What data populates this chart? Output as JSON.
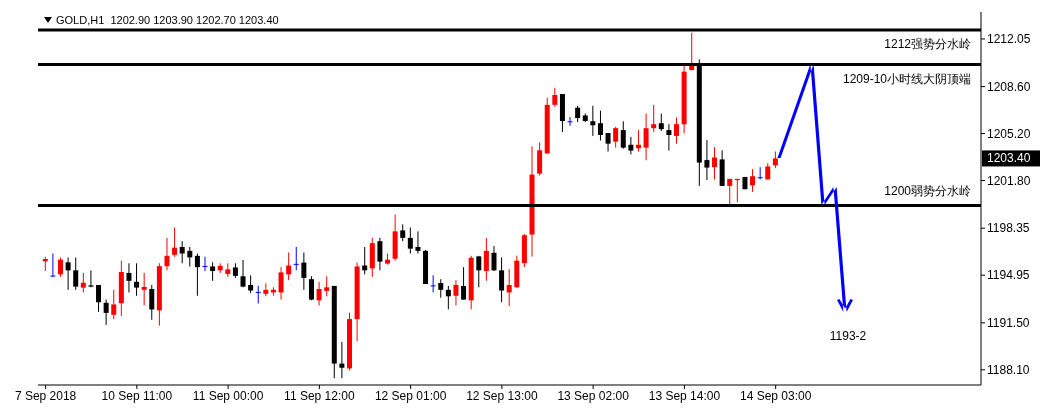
{
  "chart_data": {
    "type": "candlestick",
    "title": "GOLD,H1  1202.90 1203.90 1202.70 1203.40",
    "categories": [
      "7 Sep 2018",
      null,
      null,
      null,
      null,
      null,
      null,
      null,
      null,
      null,
      null,
      null,
      "10 Sep 11:00",
      null,
      null,
      null,
      null,
      null,
      null,
      null,
      null,
      null,
      null,
      null,
      "11 Sep 00:00",
      null,
      null,
      null,
      null,
      null,
      null,
      null,
      null,
      null,
      null,
      null,
      "11 Sep 12:00",
      null,
      null,
      null,
      null,
      null,
      null,
      null,
      null,
      null,
      null,
      null,
      "12 Sep 01:00",
      null,
      null,
      null,
      null,
      null,
      null,
      null,
      null,
      null,
      null,
      null,
      "12 Sep 13:00",
      null,
      null,
      null,
      null,
      null,
      null,
      null,
      null,
      null,
      null,
      null,
      "13 Sep 02:00",
      null,
      null,
      null,
      null,
      null,
      null,
      null,
      null,
      null,
      null,
      null,
      "13 Sep 14:00",
      null,
      null,
      null,
      null,
      null,
      null,
      null,
      null,
      null,
      null,
      null,
      "14 Sep 03:00",
      null,
      null,
      null,
      null,
      null,
      null,
      null,
      null,
      null,
      null,
      null,
      null,
      null,
      null,
      null,
      null,
      null,
      null,
      null,
      null,
      null,
      null,
      null,
      null,
      null,
      null
    ],
    "ohlc": [
      [
        1195.95,
        1196.28,
        1195.25,
        1196.12
      ],
      [
        1194.92,
        1196.52,
        1194.83,
        1194.92
      ],
      [
        1195.01,
        1196.23,
        1194.83,
        1196.07
      ],
      [
        1195.88,
        1196.23,
        1193.89,
        1195.3
      ],
      [
        1195.3,
        1196.23,
        1193.89,
        1194.12
      ],
      [
        1194.05,
        1195.11,
        1193.7,
        1194.4
      ],
      [
        1194.21,
        1195.3,
        1194.07,
        1194.12
      ],
      [
        1194.24,
        1194.24,
        1192.29,
        1192.99
      ],
      [
        1192.95,
        1193.18,
        1191.35,
        1192.22
      ],
      [
        1192.08,
        1193.89,
        1191.77,
        1192.83
      ],
      [
        1192.92,
        1196.0,
        1192.0,
        1195.18
      ],
      [
        1195.11,
        1195.81,
        1193.7,
        1194.54
      ],
      [
        1194.47,
        1195.81,
        1193.46,
        1194.05
      ],
      [
        1193.89,
        1195.11,
        1192.76,
        1194.1
      ],
      [
        1193.95,
        1194.24,
        1191.72,
        1192.47
      ],
      [
        1192.4,
        1195.81,
        1191.3,
        1195.6
      ],
      [
        1195.6,
        1197.65,
        1195.3,
        1196.35
      ],
      [
        1196.42,
        1198.4,
        1196.28,
        1196.94
      ],
      [
        1196.99,
        1197.41,
        1195.81,
        1196.52
      ],
      [
        1196.71,
        1196.99,
        1195.58,
        1196.24
      ],
      [
        1196.35,
        1196.52,
        1193.46,
        1195.53
      ],
      [
        1195.62,
        1196.28,
        1195.25,
        1195.62
      ],
      [
        1195.58,
        1195.88,
        1194.54,
        1195.25
      ],
      [
        1195.3,
        1195.81,
        1195.11,
        1195.62
      ],
      [
        1195.04,
        1195.81,
        1194.83,
        1195.37
      ],
      [
        1195.51,
        1195.81,
        1194.75,
        1194.9
      ],
      [
        1194.87,
        1196.05,
        1194.07,
        1194.12
      ],
      [
        1194.24,
        1194.94,
        1193.65,
        1193.84
      ],
      [
        1193.74,
        1194.17,
        1192.9,
        1193.74
      ],
      [
        1193.6,
        1194.35,
        1193.42,
        1193.89
      ],
      [
        1193.7,
        1194.07,
        1193.46,
        1193.89
      ],
      [
        1193.7,
        1195.53,
        1193.18,
        1195.15
      ],
      [
        1195.01,
        1196.59,
        1194.59,
        1195.65
      ],
      [
        1195.77,
        1196.99,
        1195.3,
        1195.77
      ],
      [
        1195.86,
        1196.59,
        1193.89,
        1194.75
      ],
      [
        1194.66,
        1194.87,
        1193.13,
        1193.18
      ],
      [
        1193.13,
        1194.47,
        1192.76,
        1193.95
      ],
      [
        1193.81,
        1194.87,
        1193.42,
        1194.07
      ],
      [
        1194.17,
        1194.17,
        1187.49,
        1188.55
      ],
      [
        1188.55,
        1190.12,
        1187.49,
        1188.25
      ],
      [
        1188.2,
        1192.24,
        1188.06,
        1191.77
      ],
      [
        1191.77,
        1195.86,
        1190.17,
        1195.58
      ],
      [
        1195.65,
        1196.99,
        1195.01,
        1195.3
      ],
      [
        1195.44,
        1197.65,
        1194.83,
        1197.27
      ],
      [
        1197.41,
        1197.65,
        1195.3,
        1195.93
      ],
      [
        1195.79,
        1196.52,
        1195.72,
        1196.07
      ],
      [
        1196.14,
        1199.34,
        1196.0,
        1198.12
      ],
      [
        1198.19,
        1198.63,
        1197.41,
        1197.65
      ],
      [
        1197.65,
        1198.4,
        1196.52,
        1196.87
      ],
      [
        1196.99,
        1198.12,
        1196.52,
        1196.71
      ],
      [
        1196.71,
        1196.78,
        1194.31,
        1194.31
      ],
      [
        1194.21,
        1194.94,
        1193.7,
        1194.21
      ],
      [
        1194.38,
        1194.66,
        1193.32,
        1193.89
      ],
      [
        1193.89,
        1194.17,
        1192.48,
        1193.42
      ],
      [
        1193.46,
        1194.59,
        1192.76,
        1194.24
      ],
      [
        1194.17,
        1195.53,
        1193.18,
        1193.18
      ],
      [
        1193.13,
        1196.35,
        1192.48,
        1196.21
      ],
      [
        1196.31,
        1196.35,
        1194.07,
        1195.3
      ],
      [
        1195.25,
        1197.65,
        1194.54,
        1196.71
      ],
      [
        1196.57,
        1197.06,
        1195.25,
        1195.3
      ],
      [
        1195.3,
        1196.24,
        1192.99,
        1193.84
      ],
      [
        1193.7,
        1195.39,
        1192.71,
        1194.24
      ],
      [
        1194.08,
        1196.36,
        1194.01,
        1196.0
      ],
      [
        1195.82,
        1197.93,
        1195.54,
        1197.84
      ],
      [
        1197.89,
        1204.28,
        1196.29,
        1202.23
      ],
      [
        1202.3,
        1204.56,
        1202.16,
        1203.99
      ],
      [
        1203.76,
        1207.8,
        1203.76,
        1207.28
      ],
      [
        1207.28,
        1208.51,
        1207.14,
        1207.99
      ],
      [
        1208.06,
        1208.06,
        1205.31,
        1206.11
      ],
      [
        1206.09,
        1206.39,
        1205.76,
        1206.09
      ],
      [
        1207.07,
        1207.21,
        1206.04,
        1206.32
      ],
      [
        1206.51,
        1206.65,
        1206.04,
        1206.11
      ],
      [
        1206.09,
        1207.21,
        1205.03,
        1205.8
      ],
      [
        1205.95,
        1206.86,
        1204.7,
        1205.1
      ],
      [
        1205.24,
        1205.24,
        1203.9,
        1204.47
      ],
      [
        1204.61,
        1205.69,
        1204.18,
        1205.59
      ],
      [
        1205.45,
        1206.09,
        1204.11,
        1204.18
      ],
      [
        1204.39,
        1204.96,
        1203.69,
        1203.97
      ],
      [
        1204.14,
        1205.45,
        1203.9,
        1204.39
      ],
      [
        1204.18,
        1206.65,
        1203.27,
        1205.59
      ],
      [
        1205.59,
        1207.28,
        1205.31,
        1205.88
      ],
      [
        1205.95,
        1206.65,
        1205.38,
        1205.52
      ],
      [
        1205.45,
        1205.88,
        1203.97,
        1205.1
      ],
      [
        1205.03,
        1206.37,
        1204.47,
        1205.88
      ],
      [
        1205.87,
        1210.1,
        1205.21,
        1209.68
      ],
      [
        1209.8,
        1212.5,
        1209.75,
        1210.26
      ],
      [
        1210.22,
        1210.57,
        1201.41,
        1203.1
      ],
      [
        1203.28,
        1204.74,
        1201.83,
        1202.74
      ],
      [
        1202.77,
        1204.22,
        1201.88,
        1203.47
      ],
      [
        1203.33,
        1203.99,
        1201.41,
        1201.41
      ],
      [
        1201.41,
        1201.92,
        1200.04,
        1201.92
      ],
      [
        1201.83,
        1201.92,
        1200.23,
        1201.92
      ],
      [
        1202.06,
        1202.06,
        1201.17,
        1201.17
      ],
      [
        1201.45,
        1202.63,
        1200.98,
        1202.11
      ],
      [
        1202.04,
        1202.77,
        1201.88,
        1202.04
      ],
      [
        1201.88,
        1203.05,
        1201.88,
        1202.82
      ],
      [
        1202.9,
        1203.9,
        1202.7,
        1203.4
      ],
      null,
      null,
      null,
      null,
      null,
      null,
      null,
      null,
      null,
      null,
      null,
      null,
      null,
      null,
      null,
      null,
      null,
      null,
      null,
      null,
      null,
      null,
      null,
      null,
      null,
      null
    ],
    "colors": [
      "#ff0000",
      "#0000ff",
      "#ff0000",
      "#000000",
      "#000000",
      "#ff0000",
      "#000000",
      "#000000",
      "#000000",
      "#ff0000",
      "#ff0000",
      "#000000",
      "#000000",
      "#ff0000",
      "#000000",
      "#ff0000",
      "#ff0000",
      "#ff0000",
      "#000000",
      "#000000",
      "#000000",
      "#0000ff",
      "#000000",
      "#ff0000",
      "#ff0000",
      "#000000",
      "#000000",
      "#000000",
      "#0000ff",
      "#ff0000",
      "#ff0000",
      "#ff0000",
      "#ff0000",
      "#0000ff",
      "#000000",
      "#000000",
      "#ff0000",
      "#ff0000",
      "#000000",
      "#000000",
      "#ff0000",
      "#ff0000",
      "#000000",
      "#ff0000",
      "#000000",
      "#ff0000",
      "#ff0000",
      "#000000",
      "#000000",
      "#000000",
      "#000000",
      "#0000ff",
      "#000000",
      "#000000",
      "#ff0000",
      "#000000",
      "#ff0000",
      "#000000",
      "#ff0000",
      "#000000",
      "#000000",
      "#ff0000",
      "#ff0000",
      "#ff0000",
      "#ff0000",
      "#ff0000",
      "#ff0000",
      "#ff0000",
      "#000000",
      "#0000ff",
      "#000000",
      "#000000",
      "#000000",
      "#000000",
      "#000000",
      "#ff0000",
      "#000000",
      "#000000",
      "#ff0000",
      "#ff0000",
      "#ff0000",
      "#000000",
      "#000000",
      "#ff0000",
      "#ff0000",
      "#ff0000",
      "#000000",
      "#000000",
      "#ff0000",
      "#000000",
      "#ff0000",
      "#ff0000",
      "#000000",
      "#ff0000",
      "#0000ff",
      "#ff0000",
      "#ff0000",
      null,
      null,
      null,
      null,
      null,
      null,
      null,
      null,
      null,
      null,
      null,
      null,
      null,
      null,
      null,
      null,
      null,
      null,
      null,
      null,
      null,
      null,
      null,
      null,
      null,
      null
    ],
    "ylim": [
      1187.0,
      1214.0
    ],
    "yticks": [
      {
        "value": 1188.1,
        "label": "1188.10"
      },
      {
        "value": 1191.5,
        "label": "1191.50"
      },
      1194.95,
      1198.35,
      {
        "value": 1201.8,
        "label": "1201.80"
      },
      {
        "value": 1205.2,
        "label": "1205.20"
      },
      {
        "value": 1208.6,
        "label": "1208.60"
      },
      1212.05
    ],
    "ref_lines": [
      {
        "axis": "y",
        "value": 1212.7,
        "label": "1212强势分水岭",
        "color": "#000000"
      },
      {
        "axis": "y",
        "value": 1210.2,
        "label": "1209-10小时线大阴顶端",
        "color": "#000000"
      },
      {
        "axis": "y",
        "value": 1200.0,
        "label": "1200弱势分水岭",
        "color": "#000000"
      }
    ],
    "annotations": [
      "1203.40",
      "1193-2"
    ]
  }
}
